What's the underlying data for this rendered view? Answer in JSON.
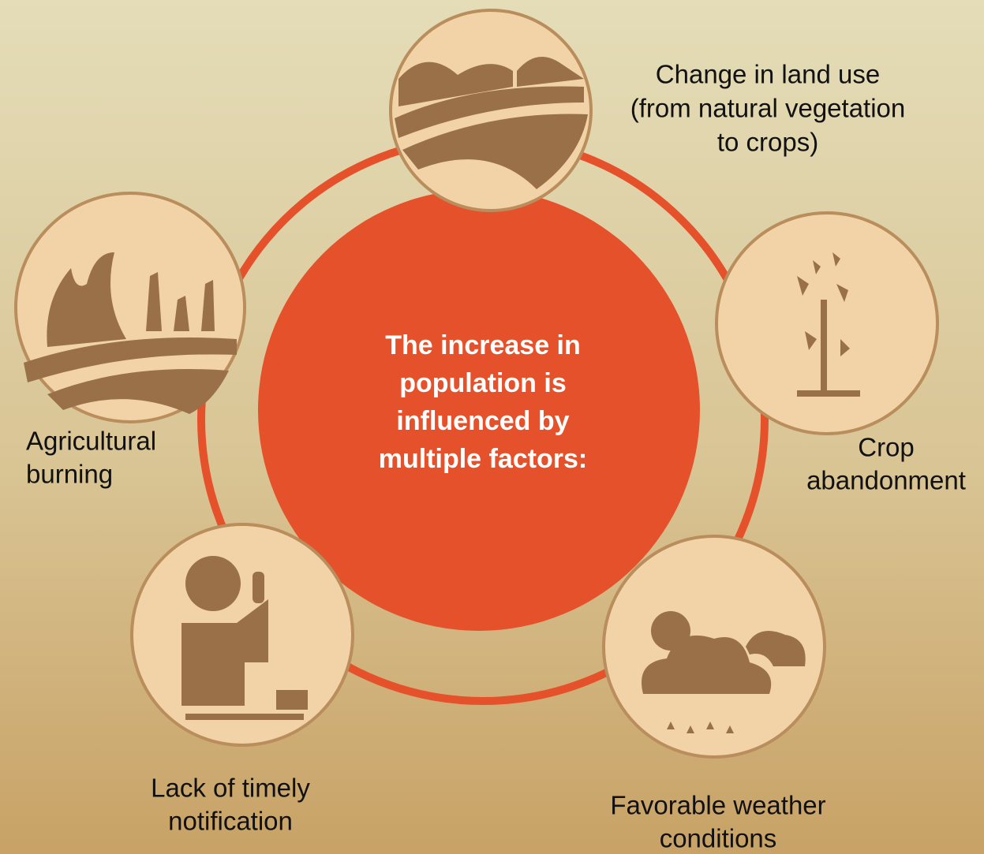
{
  "center": {
    "lines": [
      "The increase in",
      "population is",
      "influenced by",
      "multiple factors:"
    ]
  },
  "factors": [
    {
      "lines": [
        "Change in land use",
        "(from natural vegetation",
        "to crops)"
      ]
    },
    {
      "lines": [
        "Crop",
        "abandonment"
      ]
    },
    {
      "lines": [
        "Favorable weather",
        "conditions"
      ]
    },
    {
      "lines": [
        "Lack of timely",
        "notification"
      ]
    },
    {
      "lines": [
        "Agricultural",
        "burning"
      ]
    }
  ]
}
